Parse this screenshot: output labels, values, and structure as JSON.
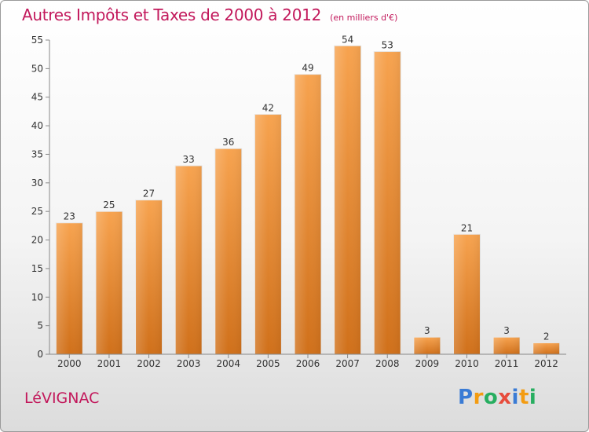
{
  "title": "Autres Impôts et Taxes de 2000 à 2012",
  "subtitle": "(en milliers d'€)",
  "location": "LéVIGNAC",
  "logo": {
    "text": "Proxiti",
    "letters": [
      "P",
      "r",
      "o",
      "x",
      "i",
      "t",
      "i"
    ],
    "colors": [
      "#3a7bd5",
      "#f39c12",
      "#27ae60",
      "#e74c3c",
      "#3a7bd5",
      "#f39c12",
      "#27ae60"
    ]
  },
  "colors": {
    "bar_top": "#f7a34f",
    "bar_bottom": "#d0701a",
    "title": "#c2185b",
    "axis_text": "#333333"
  },
  "chart_data": {
    "type": "bar",
    "title": "Autres Impôts et Taxes de 2000 à 2012",
    "subtitle": "(en milliers d'€)",
    "categories": [
      "2000",
      "2001",
      "2002",
      "2003",
      "2004",
      "2005",
      "2006",
      "2007",
      "2008",
      "2009",
      "2010",
      "2011",
      "2012"
    ],
    "values": [
      23,
      25,
      27,
      33,
      36,
      42,
      49,
      54,
      53,
      3,
      21,
      3,
      2
    ],
    "ylim": [
      0,
      55
    ],
    "yticks": [
      0,
      5,
      10,
      15,
      20,
      25,
      30,
      35,
      40,
      45,
      50,
      55
    ],
    "grid": false,
    "data_labels": true
  }
}
